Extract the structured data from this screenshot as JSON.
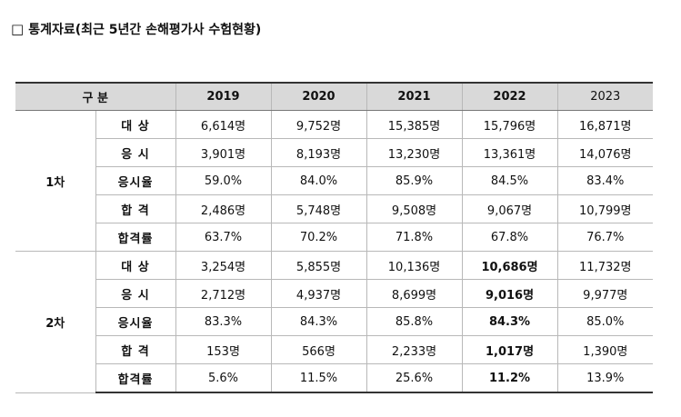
{
  "title": {
    "checkbox": "□",
    "text": "통계자료(최근 5년간 손해평가사 수험현황)"
  },
  "table": {
    "header": {
      "category": "구 분",
      "years": [
        "2019",
        "2020",
        "2021",
        "2022",
        "2023"
      ]
    },
    "groups": [
      {
        "label": "1차",
        "rows": [
          {
            "item": "대 상",
            "values": [
              "6,614명",
              "9,752명",
              "15,385명",
              "15,796명",
              "16,871명"
            ]
          },
          {
            "item": "응 시",
            "values": [
              "3,901명",
              "8,193명",
              "13,230명",
              "13,361명",
              "14,076명"
            ]
          },
          {
            "item": "응시율",
            "values": [
              "59.0%",
              "84.0%",
              "85.9%",
              "84.5%",
              "83.4%"
            ]
          },
          {
            "item": "합 격",
            "values": [
              "2,486명",
              "5,748명",
              "9,508명",
              "9,067명",
              "10,799명"
            ]
          },
          {
            "item": "합격률",
            "values": [
              "63.7%",
              "70.2%",
              "71.8%",
              "67.8%",
              "76.7%"
            ]
          }
        ]
      },
      {
        "label": "2차",
        "rows": [
          {
            "item": "대 상",
            "values": [
              "3,254명",
              "5,855명",
              "10,136명",
              "10,686명",
              "11,732명"
            ]
          },
          {
            "item": "응 시",
            "values": [
              "2,712명",
              "4,937명",
              "8,699명",
              "9,016명",
              "9,977명"
            ]
          },
          {
            "item": "응시율",
            "values": [
              "83.3%",
              "84.3%",
              "85.8%",
              "84.3%",
              "85.0%"
            ]
          },
          {
            "item": "합 격",
            "values": [
              "153명",
              "566명",
              "2,233명",
              "1,017명",
              "1,390명"
            ]
          },
          {
            "item": "합격률",
            "values": [
              "5.6%",
              "11.5%",
              "25.6%",
              "11.2%",
              "13.9%"
            ]
          }
        ]
      }
    ]
  }
}
